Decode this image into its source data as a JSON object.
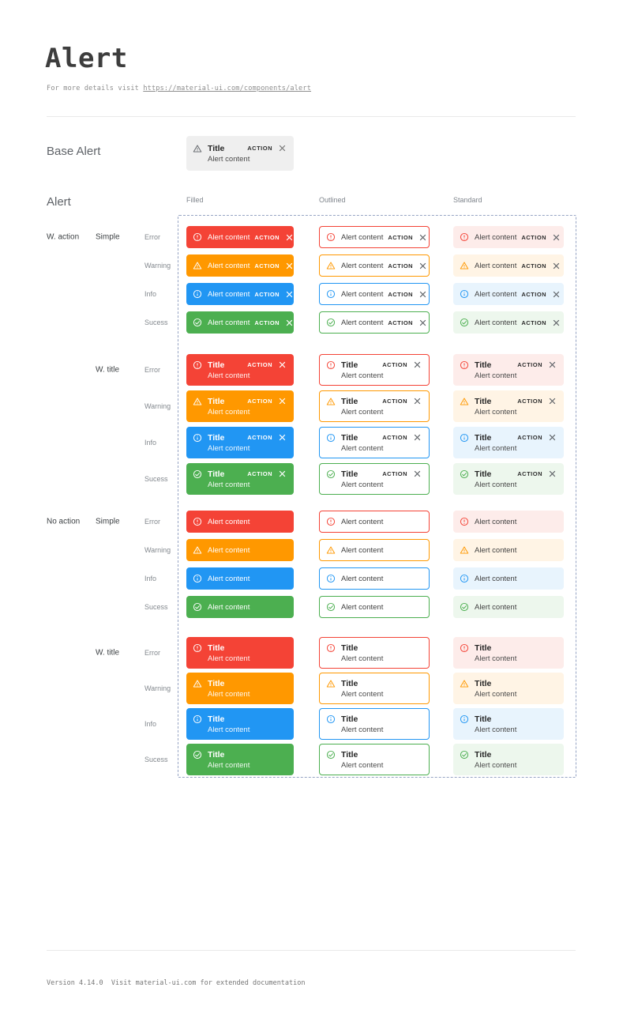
{
  "header": {
    "title": "Alert",
    "subtitle_prefix": "For more details visit ",
    "subtitle_link": "https://material-ui.com/components/alert"
  },
  "base_section": {
    "label": "Base Alert"
  },
  "base_alert": {
    "title": "Title",
    "content": "Alert content",
    "action": "ACTION",
    "bg": "#efefef",
    "icon": "triangle-exclamation"
  },
  "grid": {
    "label": "Alert",
    "columns": [
      {
        "id": "filled",
        "label": "Filled"
      },
      {
        "id": "outlined",
        "label": "Outlined"
      },
      {
        "id": "standard",
        "label": "Standard"
      }
    ],
    "groups": [
      {
        "action_label": "W. action",
        "variant_label": "Simple",
        "titled": false,
        "with_action": true
      },
      {
        "action_label": "",
        "variant_label": "W. title",
        "titled": true,
        "with_action": true
      },
      {
        "action_label": "No action",
        "variant_label": "Simple",
        "titled": false,
        "with_action": false
      },
      {
        "action_label": "",
        "variant_label": "W. title",
        "titled": true,
        "with_action": false
      }
    ],
    "severities": [
      {
        "id": "error",
        "label": "Error",
        "color": "#f44336",
        "standard_bg": "#fdecea",
        "icon": "circle-exclamation"
      },
      {
        "id": "warning",
        "label": "Warning",
        "color": "#ff9800",
        "standard_bg": "#fff4e5",
        "icon": "triangle-exclamation"
      },
      {
        "id": "info",
        "label": "Info",
        "color": "#2196f3",
        "standard_bg": "#e8f4fd",
        "icon": "circle-info"
      },
      {
        "id": "success",
        "label": "Sucess",
        "color": "#4caf50",
        "standard_bg": "#edf7ed",
        "icon": "circle-check"
      }
    ],
    "alert_text": {
      "title": "Title",
      "content": "Alert content",
      "action": "ACTION"
    },
    "close_icon": "x-mark",
    "dashed_border_color": "#96a4c4"
  },
  "footer": {
    "text": "Version 4.14.0  Visit material-ui.com for extended documentation"
  }
}
